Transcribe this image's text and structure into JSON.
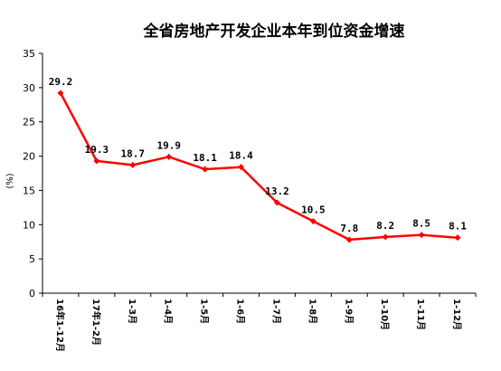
{
  "chart_data": {
    "type": "line",
    "title": "全省房地产开发企业本年到位资金增速",
    "ylabel": "(%)",
    "xlabel": "",
    "ylim": [
      0,
      35
    ],
    "yticks": [
      0,
      5,
      10,
      15,
      20,
      25,
      30,
      35
    ],
    "categories": [
      "16年1-12月",
      "17年1-2月",
      "1-3月",
      "1-4月",
      "1-5月",
      "1-6月",
      "1-7月",
      "1-8月",
      "1-9月",
      "1-10月",
      "1-11月",
      "1-12月"
    ],
    "series": [
      {
        "values": [
          29.2,
          19.3,
          18.7,
          19.9,
          18.1,
          18.4,
          13.2,
          10.5,
          7.8,
          8.2,
          8.5,
          8.1
        ],
        "labels": [
          "29.2",
          "19.3",
          "18.7",
          "19.9",
          "18.1",
          "18.4",
          "13.2",
          "10.5",
          "7.8",
          "8.2",
          "8.5",
          "8.1"
        ],
        "color": "#ff0000",
        "marker": "diamond"
      }
    ],
    "grid": false,
    "legend": "none"
  }
}
